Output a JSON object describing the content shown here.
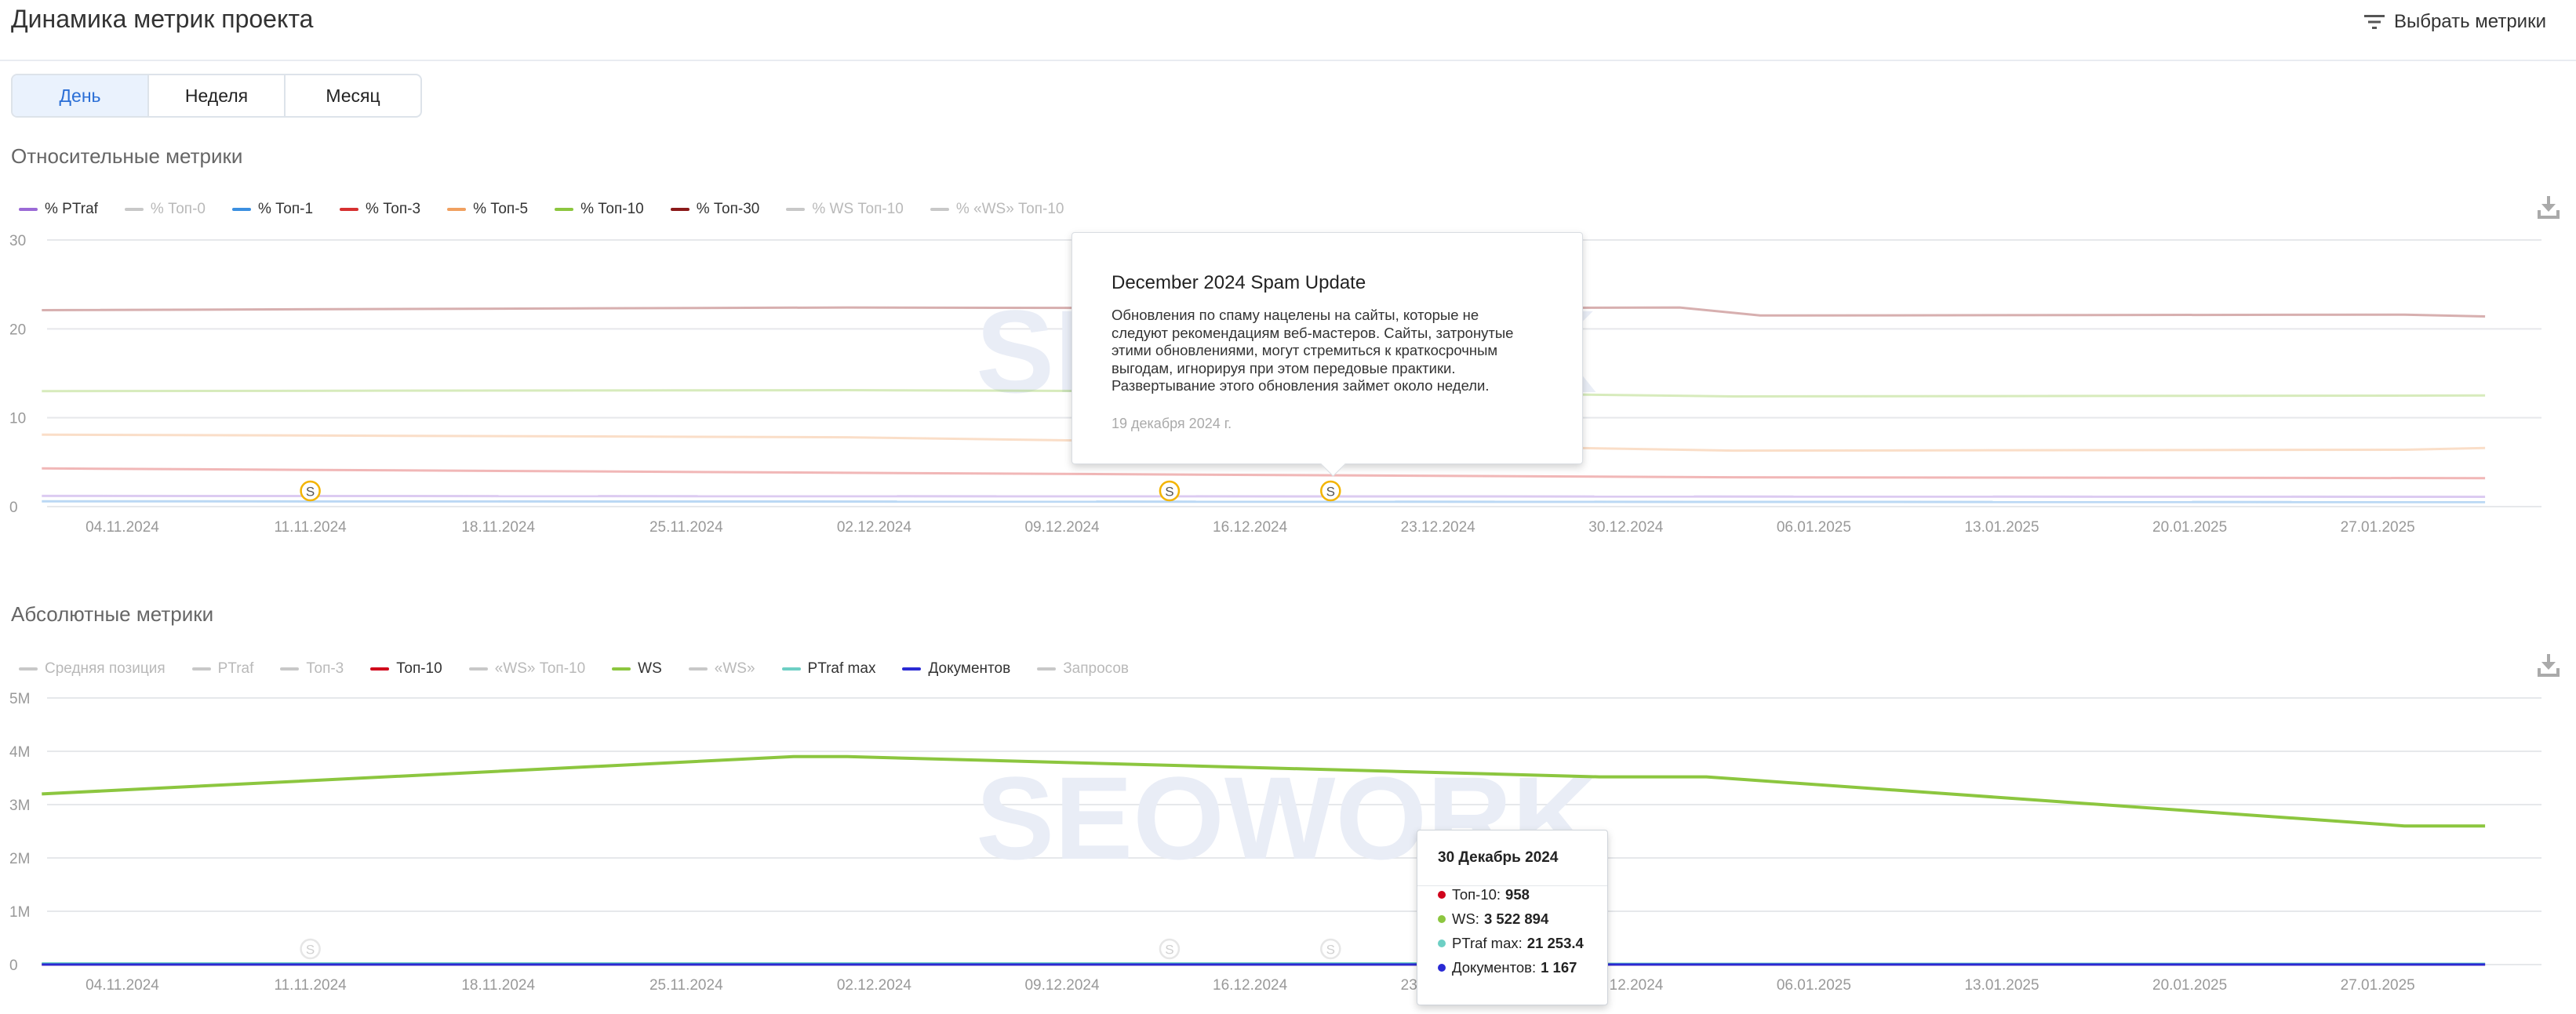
{
  "page": {
    "title": "Динамика метрик проекта",
    "select_metrics_label": "Выбрать метрики",
    "tabs": [
      {
        "label": "День",
        "active": true
      },
      {
        "label": "Неделя",
        "active": false
      },
      {
        "label": "Месяц",
        "active": false
      }
    ],
    "watermark": "SEOWORK",
    "icons": {
      "filter": "filter-icon",
      "download": "download-icon",
      "marker": "spam-update-marker-icon"
    }
  },
  "chart_data": [
    {
      "section_title": "Относительные метрики",
      "type": "line",
      "x_ticks": [
        "04.11.2024",
        "11.11.2024",
        "18.11.2024",
        "25.11.2024",
        "02.12.2024",
        "09.12.2024",
        "16.12.2024",
        "23.12.2024",
        "30.12.2024",
        "06.01.2025",
        "13.01.2025",
        "20.01.2025",
        "27.01.2025"
      ],
      "x_range": [
        "2024-11-01",
        "2025-01-31"
      ],
      "ylim": [
        0,
        30
      ],
      "y_ticks": [
        "0",
        "10",
        "20",
        "30"
      ],
      "legend_placement": "top-left",
      "grid": true,
      "series": [
        {
          "name": "% PTraf",
          "color": "#9b6ad6",
          "enabled": true,
          "points": [
            [
              "2024-11-01",
              1.2
            ],
            [
              "2025-01-31",
              1.1
            ]
          ]
        },
        {
          "name": "% Топ-0",
          "color": "#bbbbbb",
          "enabled": false,
          "points": []
        },
        {
          "name": "% Топ-1",
          "color": "#3b8fe0",
          "enabled": true,
          "points": [
            [
              "2024-11-01",
              0.6
            ],
            [
              "2025-01-31",
              0.5
            ]
          ]
        },
        {
          "name": "% Топ-3",
          "color": "#d63030",
          "enabled": true,
          "points": [
            [
              "2024-11-01",
              4.3
            ],
            [
              "2024-12-01",
              3.8
            ],
            [
              "2024-12-20",
              3.5
            ],
            [
              "2025-01-03",
              3.3
            ],
            [
              "2025-01-31",
              3.2
            ]
          ]
        },
        {
          "name": "% Топ-5",
          "color": "#f0a060",
          "enabled": true,
          "points": [
            [
              "2024-11-01",
              8.1
            ],
            [
              "2024-12-01",
              7.8
            ],
            [
              "2024-12-20",
              7.0
            ],
            [
              "2025-01-03",
              6.3
            ],
            [
              "2025-01-28",
              6.4
            ],
            [
              "2025-01-31",
              6.6
            ]
          ]
        },
        {
          "name": "% Топ-10",
          "color": "#8cc63f",
          "enabled": true,
          "points": [
            [
              "2024-11-01",
              13.0
            ],
            [
              "2024-12-01",
              13.1
            ],
            [
              "2024-12-20",
              12.9
            ],
            [
              "2025-01-03",
              12.4
            ],
            [
              "2025-01-31",
              12.5
            ]
          ]
        },
        {
          "name": "% Топ-30",
          "color": "#8b1a1a",
          "enabled": true,
          "points": [
            [
              "2024-11-01",
              22.1
            ],
            [
              "2024-12-01",
              22.4
            ],
            [
              "2024-12-20",
              22.3
            ],
            [
              "2025-01-01",
              22.4
            ],
            [
              "2025-01-04",
              21.5
            ],
            [
              "2025-01-28",
              21.6
            ],
            [
              "2025-01-31",
              21.4
            ]
          ]
        },
        {
          "name": "% WS Топ-10",
          "color": "#bbbbbb",
          "enabled": false,
          "points": []
        },
        {
          "name": "% «WS» Топ-10",
          "color": "#bbbbbb",
          "enabled": false,
          "points": []
        }
      ],
      "markers": [
        {
          "date": "2024-11-11",
          "label": "S"
        },
        {
          "date": "2024-12-13",
          "label": "S"
        },
        {
          "date": "2024-12-19",
          "label": "S"
        }
      ],
      "annotation_tooltip": {
        "title": "December 2024 Spam Update",
        "lines": [
          "Обновления по спаму нацелены на сайты, которые не",
          "следуют рекомендациям веб-мастеров. Сайты, затронутые",
          "этими обновлениями, могут стремиться к краткосрочным",
          "выгодам, игнорируя при этом передовые практики.",
          "Развертывание этого обновления займет около недели."
        ],
        "date": "19 декабря 2024 г."
      }
    },
    {
      "section_title": "Абсолютные метрики",
      "type": "line",
      "x_ticks": [
        "04.11.2024",
        "11.11.2024",
        "18.11.2024",
        "25.11.2024",
        "02.12.2024",
        "09.12.2024",
        "16.12.2024",
        "23.12.2024",
        "30.12.2024",
        "06.01.2025",
        "13.01.2025",
        "20.01.2025",
        "27.01.2025"
      ],
      "x_range": [
        "2024-11-01",
        "2025-01-31"
      ],
      "ylim": [
        0,
        5000000
      ],
      "y_ticks": [
        "0",
        "1M",
        "2M",
        "3M",
        "4M",
        "5M"
      ],
      "legend_placement": "top-left",
      "grid": true,
      "series": [
        {
          "name": "Средняя позиция",
          "color": "#bbbbbb",
          "enabled": false,
          "points": []
        },
        {
          "name": "PTraf",
          "color": "#bbbbbb",
          "enabled": false,
          "points": []
        },
        {
          "name": "Топ-3",
          "color": "#bbbbbb",
          "enabled": false,
          "points": []
        },
        {
          "name": "Топ-10",
          "color": "#d0021b",
          "enabled": true,
          "points": [
            [
              "2024-11-01",
              1000
            ],
            [
              "2025-01-31",
              950
            ]
          ]
        },
        {
          "name": "«WS» Топ-10",
          "color": "#bbbbbb",
          "enabled": false,
          "points": []
        },
        {
          "name": "WS",
          "color": "#8cc63f",
          "enabled": true,
          "points": [
            [
              "2024-11-01",
              3200000
            ],
            [
              "2024-11-29",
              3900000
            ],
            [
              "2024-12-01",
              3900000
            ],
            [
              "2024-12-29",
              3520000
            ],
            [
              "2025-01-02",
              3520000
            ],
            [
              "2025-01-28",
              2600000
            ],
            [
              "2025-01-31",
              2600000
            ]
          ]
        },
        {
          "name": "«WS»",
          "color": "#bbbbbb",
          "enabled": false,
          "points": []
        },
        {
          "name": "PTraf max",
          "color": "#6dcfc4",
          "enabled": true,
          "points": [
            [
              "2024-11-01",
              21500
            ],
            [
              "2025-01-31",
              21000
            ]
          ]
        },
        {
          "name": "Документов",
          "color": "#2a2ad4",
          "enabled": true,
          "points": [
            [
              "2024-11-01",
              1170
            ],
            [
              "2025-01-31",
              1160
            ]
          ]
        },
        {
          "name": "Запросов",
          "color": "#bbbbbb",
          "enabled": false,
          "points": []
        }
      ],
      "markers": [
        {
          "date": "2024-11-11",
          "label": "S"
        },
        {
          "date": "2024-12-13",
          "label": "S"
        },
        {
          "date": "2024-12-19",
          "label": "S"
        }
      ],
      "hover_tooltip": {
        "title": "30 Декабрь 2024",
        "rows": [
          {
            "label": "Топ-10:",
            "value": "958",
            "color": "#d0021b"
          },
          {
            "label": "WS:",
            "value": "3 522 894",
            "color": "#8cc63f"
          },
          {
            "label": "PTraf max:",
            "value": "21 253.4",
            "color": "#6dcfc4"
          },
          {
            "label": "Документов:",
            "value": "1 167",
            "color": "#2a2ad4"
          }
        ]
      }
    }
  ]
}
